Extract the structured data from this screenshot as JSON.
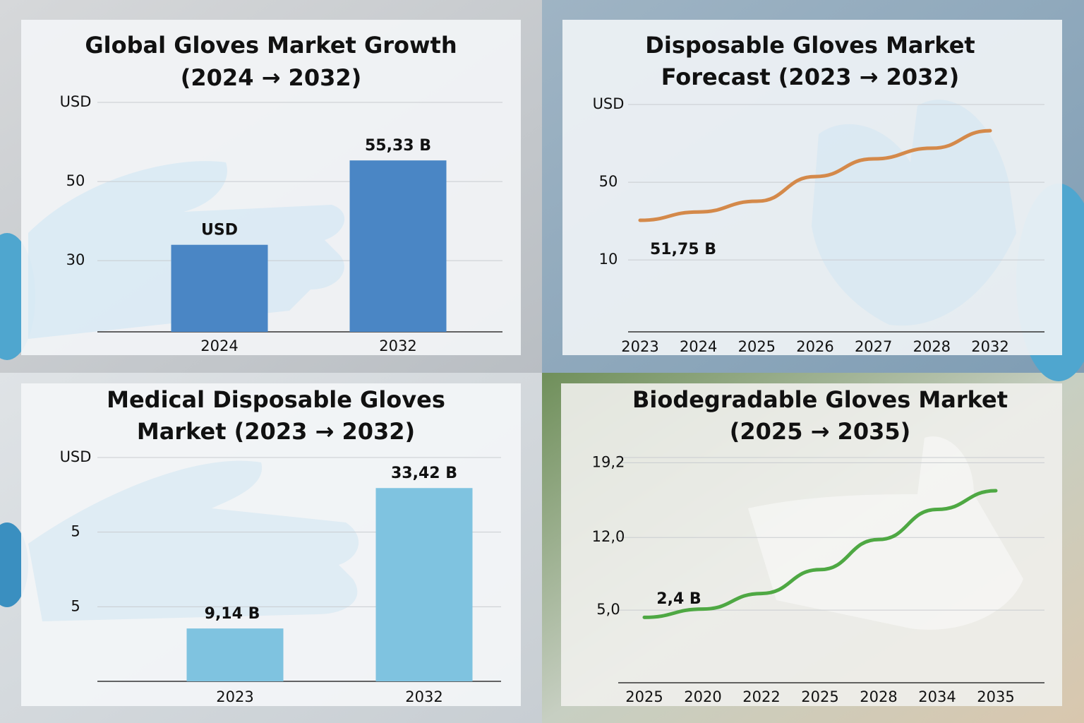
{
  "chart_data": [
    {
      "type": "bar",
      "title": [
        "Global Gloves Market Growth",
        "(2024 → 2032)"
      ],
      "y_axis_label": "USD",
      "categories": [
        "2024",
        "2032"
      ],
      "values": [
        34,
        55.33
      ],
      "color": "#4a86c5",
      "annotations": [
        "USD",
        "55,33 B"
      ],
      "ylim": [
        12,
        70
      ],
      "yticks": [
        50,
        30
      ],
      "grid": true
    },
    {
      "type": "line",
      "title": [
        "Disposable Gloves Market",
        "Forecast (2023 → 2032)"
      ],
      "y_axis_label": "USD",
      "categories": [
        "2023",
        "2024",
        "2025",
        "2026",
        "2027",
        "2028",
        "2032"
      ],
      "values": [
        30.4,
        34.7,
        40.2,
        52.9,
        62,
        67.5,
        76.5
      ],
      "color": "#d4894a",
      "annotations": [
        "51,75 B"
      ],
      "ylim": [
        -27,
        90
      ],
      "yticks": [
        50,
        10
      ],
      "grid": true
    },
    {
      "type": "bar",
      "title": [
        "Medical Disposable Gloves",
        "Market (2023 → 2032)"
      ],
      "y_axis_label": "USD",
      "y_axis_texts": [
        "5",
        "5"
      ],
      "categories": [
        "2023",
        "2032"
      ],
      "values": [
        9.14,
        33.42
      ],
      "color": "#7fc3e0",
      "annotations": [
        "9,14 B",
        "33,42 B"
      ],
      "ylim": [
        0,
        38.7
      ],
      "grid": true
    },
    {
      "type": "line",
      "title": [
        "Biodegradable Gloves Market",
        "(2025 → 2035)"
      ],
      "categories": [
        "2025",
        "2020",
        "2022",
        "2025",
        "2028",
        "2034",
        "2035"
      ],
      "values": [
        4.3,
        5.1,
        6.6,
        8.9,
        11.8,
        14.7,
        16.5
      ],
      "color": "#4ea843",
      "annotations": [
        "2,4 B"
      ],
      "ylim": [
        -2,
        19.7
      ],
      "yticks": [
        {
          "value": 19.2,
          "label": "19,2"
        },
        {
          "value": 12,
          "label": "12,0"
        },
        {
          "value": 5,
          "label": "5,0"
        }
      ],
      "grid": true
    }
  ]
}
